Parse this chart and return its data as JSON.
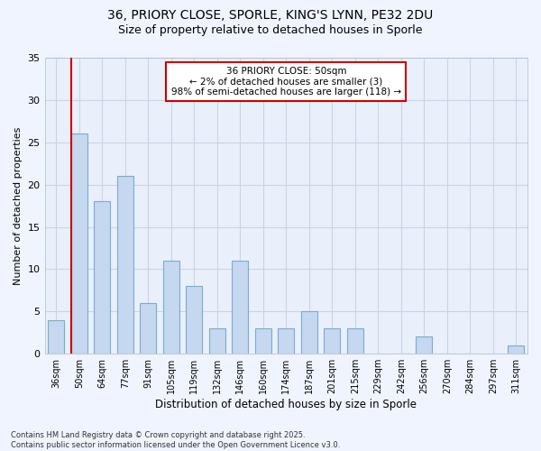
{
  "title_line1": "36, PRIORY CLOSE, SPORLE, KING'S LYNN, PE32 2DU",
  "title_line2": "Size of property relative to detached houses in Sporle",
  "xlabel": "Distribution of detached houses by size in Sporle",
  "ylabel": "Number of detached properties",
  "categories": [
    "36sqm",
    "50sqm",
    "64sqm",
    "77sqm",
    "91sqm",
    "105sqm",
    "119sqm",
    "132sqm",
    "146sqm",
    "160sqm",
    "174sqm",
    "187sqm",
    "201sqm",
    "215sqm",
    "229sqm",
    "242sqm",
    "256sqm",
    "270sqm",
    "284sqm",
    "297sqm",
    "311sqm"
  ],
  "values": [
    4,
    26,
    18,
    21,
    6,
    11,
    8,
    3,
    11,
    3,
    3,
    5,
    3,
    3,
    0,
    0,
    2,
    0,
    0,
    0,
    1
  ],
  "bar_color": "#c5d8f0",
  "bar_edge_color": "#7aabce",
  "highlight_index": 1,
  "highlight_color": "#cc0000",
  "ylim": [
    0,
    35
  ],
  "yticks": [
    0,
    5,
    10,
    15,
    20,
    25,
    30,
    35
  ],
  "annotation_title": "36 PRIORY CLOSE: 50sqm",
  "annotation_line1": "← 2% of detached houses are smaller (3)",
  "annotation_line2": "98% of semi-detached houses are larger (118) →",
  "footer_line1": "Contains HM Land Registry data © Crown copyright and database right 2025.",
  "footer_line2": "Contains public sector information licensed under the Open Government Licence v3.0.",
  "bg_color": "#f0f4ff",
  "plot_bg_color": "#eaf0fb",
  "grid_color": "#c8d4e8",
  "annotation_box_color": "#cc0000",
  "title1_fontsize": 10,
  "title2_fontsize": 9
}
